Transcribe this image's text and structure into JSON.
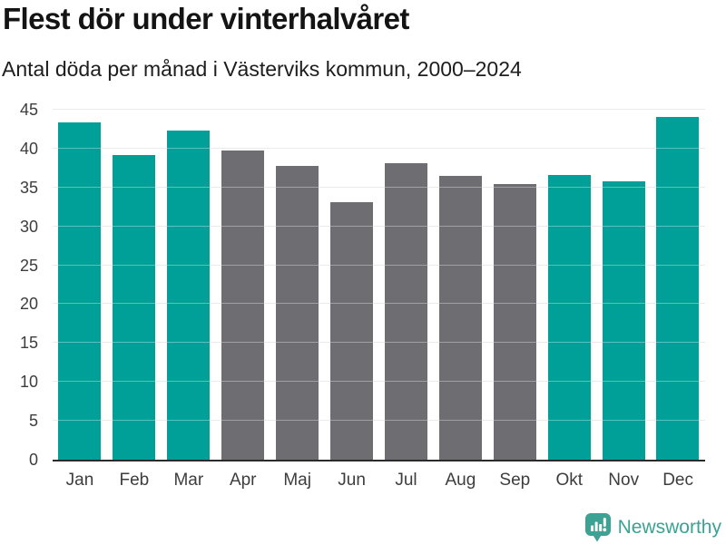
{
  "header": {
    "title": "Flest dör under vinterhalvåret",
    "subtitle": "Antal döda per månad i Västerviks kommun, 2000–2024"
  },
  "chart_data": {
    "type": "bar",
    "title": "Flest dör under vinterhalvåret",
    "subtitle": "Antal döda per månad i Västerviks kommun, 2000–2024",
    "categories": [
      "Jan",
      "Feb",
      "Mar",
      "Apr",
      "Maj",
      "Jun",
      "Jul",
      "Aug",
      "Sep",
      "Okt",
      "Nov",
      "Dec"
    ],
    "values": [
      43.4,
      39.2,
      42.3,
      39.7,
      37.8,
      33.1,
      38.1,
      36.5,
      35.4,
      36.6,
      35.8,
      44.1
    ],
    "bar_groups": [
      "winter",
      "winter",
      "winter",
      "summer",
      "summer",
      "summer",
      "summer",
      "summer",
      "summer",
      "winter",
      "winter",
      "winter"
    ],
    "colors": {
      "winter": "#00A099",
      "summer": "#6E6D72"
    },
    "xlabel": "",
    "ylabel": "",
    "ylim": [
      0,
      45
    ],
    "yticks": [
      0,
      5,
      10,
      15,
      20,
      25,
      30,
      35,
      40,
      45
    ],
    "grid": true,
    "legend": false
  },
  "footer": {
    "brand": "Newsworthy",
    "brand_color": "#3BA294",
    "logo_icon": "newsworthy-chart-bubble-icon"
  }
}
